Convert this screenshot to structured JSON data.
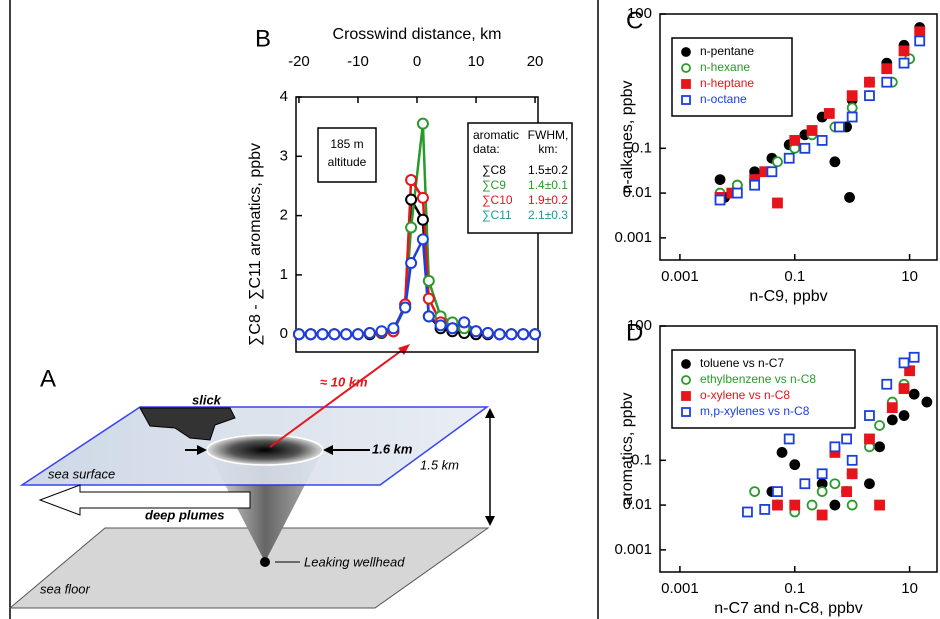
{
  "diagram": {
    "label": "A",
    "slick": "slick",
    "distance": "≈ 10 km",
    "width": "1.6 km",
    "depth": "1.5 km",
    "surface": "sea surface",
    "plumes": "deep plumes",
    "wellhead": "Leaking wellhead",
    "floor": "sea floor"
  },
  "chart_data": [
    {
      "type": "line",
      "label": "B",
      "xlabel": "Crosswind distance, km",
      "ylabel": "∑C8 - ∑C11 aromatics, ppbv",
      "x_axis_position": "top",
      "xlim": [
        -20.5,
        20.5
      ],
      "ylim": [
        -0.3,
        4
      ],
      "xticks": [
        -20,
        -10,
        0,
        10,
        20
      ],
      "yticks": [
        0,
        1,
        2,
        3,
        4
      ],
      "annotation_lines": [
        "185 m",
        "altitude"
      ],
      "legend_header": [
        [
          "aromatic",
          "data:"
        ],
        [
          "FWHM,",
          "km:"
        ]
      ],
      "series": [
        {
          "name": "∑C8",
          "color": "#000000",
          "fwhm": "1.5±0.2",
          "x": [
            -20,
            -18,
            -16,
            -14,
            -12,
            -10,
            -8,
            -6,
            -4,
            -2,
            -1,
            1,
            2,
            4,
            6,
            8,
            10,
            12,
            14,
            16,
            18,
            20
          ],
          "values": [
            0,
            0,
            0,
            0,
            0,
            0,
            0,
            0.02,
            0.05,
            0.5,
            2.27,
            1.93,
            0.3,
            0.1,
            0.05,
            0.02,
            0,
            0,
            0,
            0,
            0,
            0
          ]
        },
        {
          "name": "∑C9",
          "color": "#2a9a2a",
          "fwhm": "1.4±0.1",
          "x": [
            -20,
            -18,
            -16,
            -14,
            -12,
            -10,
            -8,
            -6,
            -4,
            -2,
            -1,
            1,
            2,
            4,
            6,
            8,
            10,
            12,
            14,
            16,
            18,
            20
          ],
          "values": [
            0,
            0,
            0,
            0,
            0,
            0,
            0.02,
            0.03,
            0.05,
            0.45,
            1.8,
            3.55,
            0.9,
            0.3,
            0.2,
            0.1,
            0.05,
            0.02,
            0,
            0,
            0,
            0
          ]
        },
        {
          "name": "∑C10",
          "color": "#e8141b",
          "fwhm": "1.9±0.2",
          "x": [
            -20,
            -18,
            -16,
            -14,
            -12,
            -10,
            -8,
            -6,
            -4,
            -2,
            -1,
            1,
            2,
            4,
            6,
            8,
            10,
            12,
            14,
            16,
            18,
            20
          ],
          "values": [
            0,
            0,
            0,
            0,
            0,
            0,
            0.02,
            0.03,
            0.05,
            0.5,
            2.6,
            2.3,
            0.6,
            0.2,
            0.1,
            0.2,
            0.05,
            0.02,
            0,
            0,
            0,
            0
          ]
        },
        {
          "name": "∑C11",
          "color": "#1a3fe0",
          "legend_color": "#1a9a9a",
          "fwhm": "2.1±0.3",
          "x": [
            -20,
            -18,
            -16,
            -14,
            -12,
            -10,
            -8,
            -6,
            -4,
            -2,
            -1,
            1,
            2,
            4,
            6,
            8,
            10,
            12,
            14,
            16,
            18,
            20
          ],
          "values": [
            0,
            0,
            0,
            0,
            0,
            0,
            0.02,
            0.05,
            0.1,
            0.45,
            1.2,
            1.6,
            0.3,
            0.15,
            0.1,
            0.2,
            0.05,
            0.02,
            0,
            0,
            0,
            0
          ]
        }
      ]
    },
    {
      "type": "scatter",
      "label": "C",
      "xlabel": "n-C9, ppbv",
      "ylabel": "n-alkanes, ppbv",
      "xscale": "log",
      "yscale": "log",
      "xlim": [
        0.00045,
        30
      ],
      "ylim": [
        0.00032,
        100
      ],
      "xticks": [
        0.001,
        0.1,
        10
      ],
      "yticks": [
        0.001,
        0.01,
        0.1,
        100
      ],
      "series": [
        {
          "name": "n-pentane",
          "color": "#000000",
          "marker": "circle",
          "filled": true,
          "x": [
            0.005,
            0.006,
            0.01,
            0.02,
            0.04,
            0.08,
            0.15,
            0.3,
            0.5,
            0.8,
            1,
            2,
            4,
            8,
            15,
            0.9
          ],
          "values": [
            0.02,
            0.008,
            0.015,
            0.03,
            0.06,
            0.12,
            0.2,
            0.5,
            0.05,
            0.3,
            1.2,
            3,
            8,
            20,
            50,
            0.008
          ]
        },
        {
          "name": "n-hexane",
          "color": "#2a9a2a",
          "marker": "circle",
          "filled": false,
          "x": [
            0.005,
            0.01,
            0.02,
            0.05,
            0.1,
            0.2,
            0.5,
            1,
            2,
            5,
            10,
            15
          ],
          "values": [
            0.01,
            0.015,
            0.02,
            0.05,
            0.1,
            0.2,
            0.3,
            0.8,
            1.5,
            3,
            10,
            40
          ]
        },
        {
          "name": "n-heptane",
          "color": "#e8141b",
          "marker": "square",
          "filled": true,
          "x": [
            0.005,
            0.008,
            0.02,
            0.03,
            0.05,
            0.1,
            0.2,
            0.4,
            1,
            2,
            4,
            8,
            15
          ],
          "values": [
            0.008,
            0.01,
            0.02,
            0.03,
            0.006,
            0.15,
            0.25,
            0.6,
            1.5,
            3,
            6,
            15,
            40
          ]
        },
        {
          "name": "n-octane",
          "color": "#1a3fe0",
          "marker": "square",
          "filled": false,
          "x": [
            0.005,
            0.01,
            0.02,
            0.04,
            0.08,
            0.15,
            0.3,
            0.6,
            1,
            2,
            4,
            8,
            15
          ],
          "values": [
            0.007,
            0.01,
            0.015,
            0.03,
            0.06,
            0.1,
            0.15,
            0.3,
            0.5,
            1.5,
            3,
            8,
            25
          ]
        }
      ]
    },
    {
      "type": "scatter",
      "label": "D",
      "xlabel": "n-C7 and n-C8, ppbv",
      "ylabel": "aromatics, ppbv",
      "xscale": "log",
      "yscale": "log",
      "xlim": [
        0.00045,
        30
      ],
      "ylim": [
        0.00032,
        100
      ],
      "xticks": [
        0.001,
        0.1,
        10
      ],
      "yticks": [
        0.001,
        0.01,
        0.1,
        100
      ],
      "series": [
        {
          "name": "toluene vs n-C7",
          "color": "#000000",
          "marker": "circle",
          "filled": true,
          "x": [
            0.04,
            0.06,
            0.1,
            0.3,
            0.5,
            0.8,
            1,
            2,
            3,
            5,
            8,
            12,
            20
          ],
          "values": [
            0.02,
            0.15,
            0.08,
            0.03,
            0.01,
            0.02,
            0.05,
            0.03,
            0.2,
            0.8,
            1,
            3,
            2
          ]
        },
        {
          "name": "ethylbenzene vs n-C8",
          "color": "#2a9a2a",
          "marker": "circle",
          "filled": false,
          "x": [
            0.02,
            0.05,
            0.1,
            0.2,
            0.3,
            0.5,
            0.8,
            1,
            2,
            3,
            5,
            8
          ],
          "values": [
            0.02,
            0.01,
            0.007,
            0.01,
            0.02,
            0.03,
            0.02,
            0.01,
            0.2,
            0.6,
            2,
            5
          ]
        },
        {
          "name": "o-xylene vs n-C8",
          "color": "#e8141b",
          "marker": "square",
          "filled": true,
          "x": [
            0.05,
            0.1,
            0.3,
            0.5,
            0.8,
            1,
            2,
            3,
            5,
            8,
            10
          ],
          "values": [
            0.01,
            0.01,
            0.006,
            0.15,
            0.02,
            0.05,
            0.3,
            0.01,
            1.5,
            4,
            10
          ]
        },
        {
          "name": "m,p-xylenes vs n-C8",
          "color": "#1a3fe0",
          "marker": "square",
          "filled": false,
          "x": [
            0.015,
            0.03,
            0.05,
            0.08,
            0.15,
            0.3,
            0.5,
            0.8,
            1,
            2,
            4,
            8,
            12
          ],
          "values": [
            0.007,
            0.008,
            0.02,
            0.3,
            0.03,
            0.05,
            0.2,
            0.3,
            0.1,
            1,
            5,
            15,
            20
          ]
        }
      ]
    }
  ]
}
